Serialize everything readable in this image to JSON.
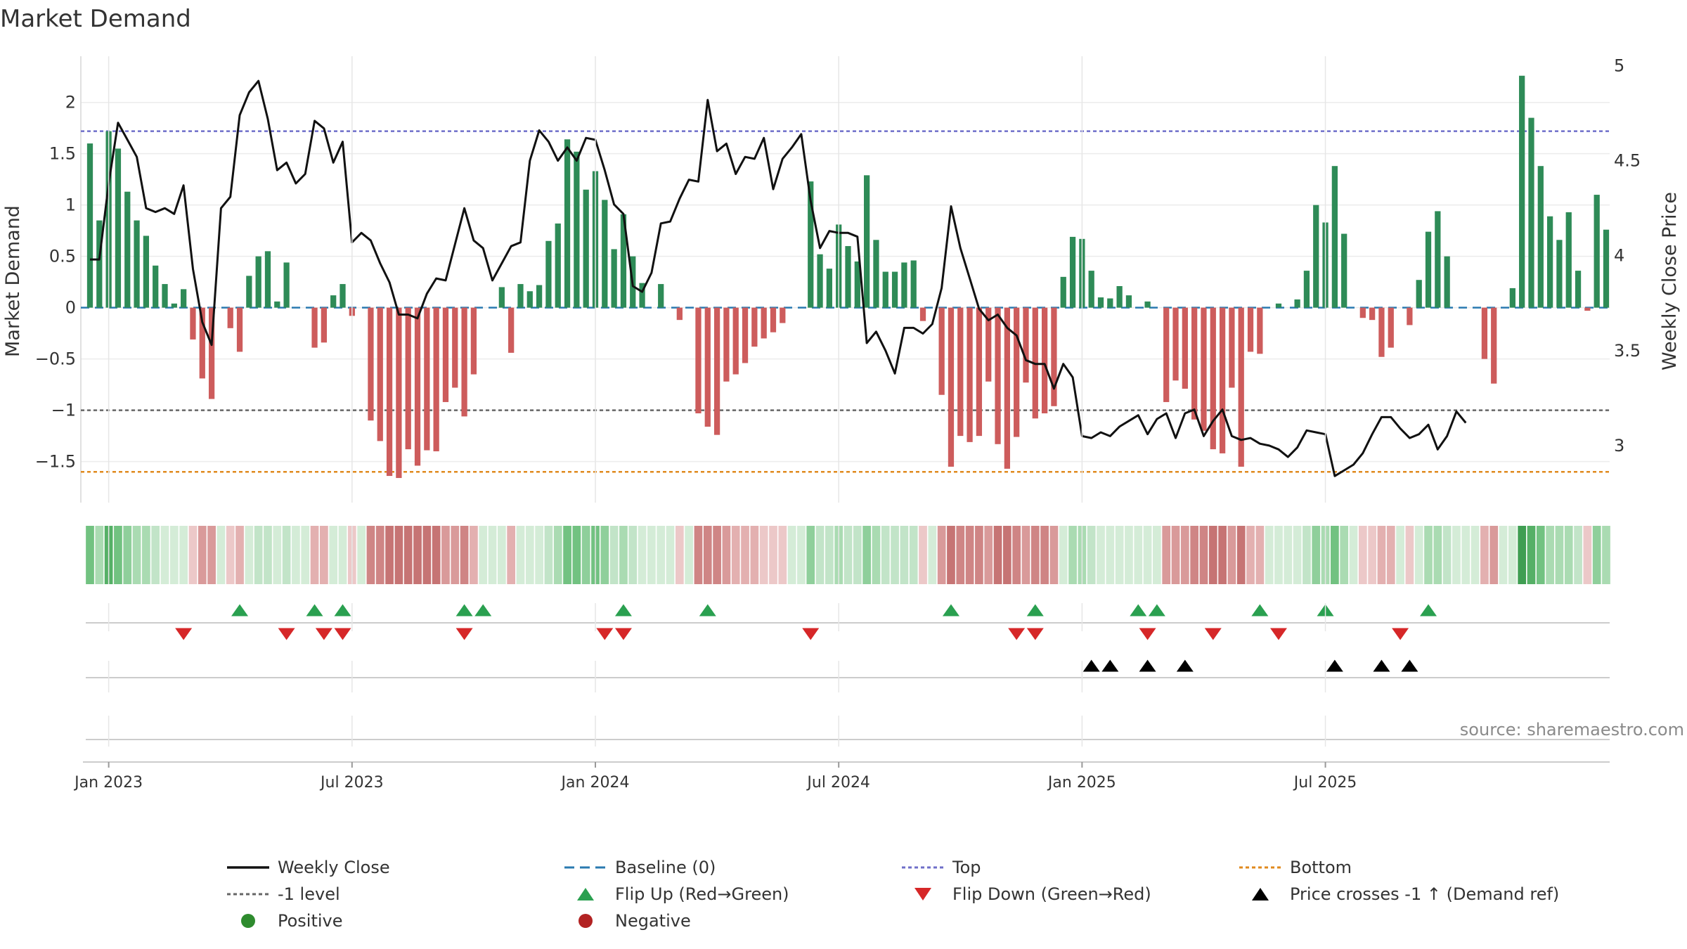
{
  "chart_data": {
    "type": "bar",
    "title": "Market Demand",
    "ylabel": "Market Demand",
    "ylabel_right": "Weekly Close Price",
    "ylim": [
      -1.9,
      2.45
    ],
    "ylim_right": [
      2.7,
      5.05
    ],
    "yticks": [
      "2",
      "1.5",
      "1",
      "0.5",
      "0",
      "−0.5",
      "−1",
      "−1.5"
    ],
    "yticks_values": [
      2,
      1.5,
      1,
      0.5,
      0,
      -0.5,
      -1,
      -1.5
    ],
    "yticks_right": [
      "5",
      "4.5",
      "4",
      "3.5",
      "3"
    ],
    "yticks_right_values": [
      5,
      4.5,
      4,
      3.5,
      3
    ],
    "x_start_index": -2,
    "x_tick_labels": [
      "Jan 2023",
      "Jul 2023",
      "Jan 2024",
      "Jul 2024",
      "Jan 2025",
      "Jul 2025"
    ],
    "x_tick_positions": [
      0,
      26,
      52,
      78,
      104,
      130
    ],
    "reference_levels": {
      "top": 1.72,
      "minus_one": -1.0,
      "bottom": -1.6,
      "baseline": 0
    },
    "series": [
      {
        "name": "Market Demand",
        "values": [
          1.6,
          0.85,
          1.72,
          1.55,
          1.13,
          0.85,
          0.7,
          0.41,
          0.23,
          0.04,
          0.18,
          -0.31,
          -0.69,
          -0.89,
          0,
          -0.2,
          -0.43,
          0.31,
          0.5,
          0.55,
          0.06,
          0.44,
          0,
          0,
          -0.39,
          -0.34,
          0.12,
          0.23,
          -0.08,
          0,
          -1.1,
          -1.3,
          -1.64,
          -1.66,
          -1.38,
          -1.54,
          -1.39,
          -1.4,
          -0.92,
          -0.78,
          -1.06,
          -0.65,
          0,
          0,
          0.2,
          -0.44,
          0.23,
          0.16,
          0.22,
          0.65,
          0.82,
          1.64,
          1.52,
          1.15,
          1.33,
          1.05,
          0.57,
          0.91,
          0.5,
          0.24,
          0,
          0.23,
          0,
          -0.12,
          0,
          -1.03,
          -1.16,
          -1.24,
          -0.72,
          -0.65,
          -0.54,
          -0.38,
          -0.3,
          -0.24,
          -0.15,
          0,
          0,
          1.23,
          0.52,
          0.38,
          0.81,
          0.6,
          0.45,
          1.29,
          0.66,
          0.35,
          0.35,
          0.44,
          0.46,
          -0.13,
          0,
          -0.85,
          -1.55,
          -1.25,
          -1.31,
          -1.25,
          -0.72,
          -1.33,
          -1.57,
          -1.26,
          -0.73,
          -1.08,
          -1.03,
          -0.96,
          0.3,
          0.69,
          0.67,
          0.36,
          0.1,
          0.09,
          0.21,
          0.12,
          0,
          0.06,
          0,
          -0.92,
          -0.71,
          -0.79,
          -1.09,
          -1.2,
          -1.38,
          -1.42,
          -0.78,
          -1.55,
          -0.43,
          -0.45,
          0,
          0.04,
          0,
          0.08,
          0.36,
          1.0,
          0.83,
          1.38,
          0.72,
          0,
          -0.1,
          -0.12,
          -0.48,
          -0.39,
          0,
          -0.17,
          0.27,
          0.74,
          0.94,
          0.5,
          0,
          0,
          0,
          -0.5,
          -0.74,
          0,
          0.19,
          2.26,
          1.85,
          1.38,
          0.89,
          0.66,
          0.93,
          0.36,
          -0.03,
          1.1,
          0.76
        ]
      },
      {
        "name": "Weekly Close",
        "values": [
          3.98,
          3.98,
          4.38,
          4.7,
          4.61,
          4.52,
          4.25,
          4.23,
          4.25,
          4.22,
          4.37,
          3.93,
          3.65,
          3.53,
          4.25,
          4.31,
          4.74,
          4.86,
          4.92,
          4.72,
          4.45,
          4.49,
          4.38,
          4.43,
          4.71,
          4.67,
          4.49,
          4.6,
          4.07,
          4.12,
          4.08,
          3.96,
          3.86,
          3.69,
          3.69,
          3.67,
          3.8,
          3.88,
          3.87,
          4.06,
          4.25,
          4.08,
          4.04,
          3.87,
          3.96,
          4.05,
          4.07,
          4.5,
          4.66,
          4.6,
          4.5,
          4.57,
          4.5,
          4.62,
          4.61,
          4.45,
          4.27,
          4.22,
          3.84,
          3.81,
          3.91,
          4.17,
          4.18,
          4.3,
          4.4,
          4.39,
          4.82,
          4.55,
          4.59,
          4.43,
          4.52,
          4.51,
          4.62,
          4.35,
          4.51,
          4.57,
          4.64,
          4.29,
          4.04,
          4.13,
          4.12,
          4.12,
          4.1,
          3.54,
          3.6,
          3.5,
          3.38,
          3.62,
          3.62,
          3.59,
          3.64,
          3.83,
          4.26,
          4.04,
          3.88,
          3.72,
          3.66,
          3.69,
          3.62,
          3.58,
          3.45,
          3.43,
          3.43,
          3.3,
          3.43,
          3.36,
          3.05,
          3.04,
          3.07,
          3.05,
          3.1,
          3.13,
          3.16,
          3.06,
          3.14,
          3.17,
          3.04,
          3.17,
          3.19,
          3.05,
          3.13,
          3.19,
          3.05,
          3.03,
          3.04,
          3.01,
          3.0,
          2.98,
          2.94,
          2.99,
          3.08,
          3.07,
          3.06,
          2.84,
          2.87,
          2.9,
          2.96,
          3.06,
          3.15,
          3.15,
          3.09,
          3.04,
          3.06,
          3.11,
          2.98,
          3.05,
          3.18,
          3.12
        ]
      }
    ],
    "state_strip": {
      "name": "Demand state strip"
    },
    "flip_up_indices": [
      16,
      24,
      27,
      40,
      42,
      57,
      66,
      92,
      101,
      112,
      114,
      125,
      132,
      143
    ],
    "flip_down_indices": [
      10,
      21,
      25,
      27,
      40,
      55,
      57,
      77,
      99,
      101,
      113,
      120,
      127,
      140
    ],
    "price_cross_indices": [
      107,
      109,
      113,
      117,
      133,
      138,
      141
    ]
  },
  "source_text": "source: sharemaestro.com",
  "legend": [
    {
      "label": "Weekly Close",
      "symbol": "line",
      "color": "#111111"
    },
    {
      "label": "Baseline (0)",
      "symbol": "dash",
      "color": "#2a7ab0"
    },
    {
      "label": "Top",
      "symbol": "dot",
      "color": "#6f6fc9"
    },
    {
      "label": "Bottom",
      "symbol": "dot",
      "color": "#e08a1e"
    },
    {
      "label": "-1 level",
      "symbol": "dot",
      "color": "#666666"
    },
    {
      "label": "Flip Up (Red→Green)",
      "symbol": "tri-up",
      "color": "#2aa050"
    },
    {
      "label": "Flip Down (Green→Red)",
      "symbol": "tri-down",
      "color": "#d62728"
    },
    {
      "label": "Price crosses -1 ↑ (Demand ref)",
      "symbol": "tri-up",
      "color": "#000000"
    },
    {
      "label": "Positive",
      "symbol": "circle",
      "color": "#2e8b2e"
    },
    {
      "label": "Negative",
      "symbol": "circle",
      "color": "#b22222"
    }
  ],
  "colors": {
    "positive_bar": "#2e8b57",
    "negative_bar": "#cd5c5c",
    "flip_up": "#2aa050",
    "flip_down": "#d62728",
    "price_cross": "#000000",
    "close_line": "#111111"
  }
}
